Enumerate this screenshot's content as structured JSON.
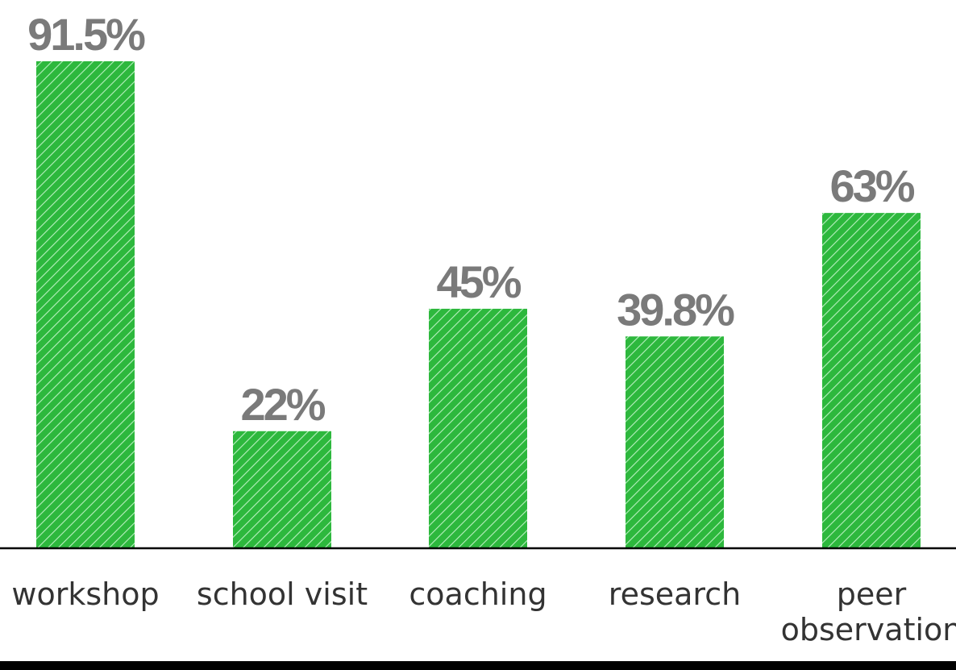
{
  "chart_data": {
    "type": "bar",
    "categories": [
      [
        "workshop"
      ],
      [
        "school visit"
      ],
      [
        "coaching"
      ],
      [
        "research"
      ],
      [
        "peer",
        "observation"
      ]
    ],
    "values": [
      91.5,
      22,
      45,
      39.8,
      63
    ],
    "value_labels": [
      "91.5%",
      "22%",
      "45%",
      "39.8%",
      "63%"
    ],
    "ylim": [
      0,
      100
    ],
    "grid": false,
    "legend": "none",
    "title": "",
    "xlabel": "",
    "ylabel": ""
  },
  "colors": {
    "bar_fill": "#2db83d",
    "bar_hatch": "#b8f0c0",
    "value_text": "#7a7a7a",
    "axis": "#000000",
    "category_text": "#333333",
    "bottom_band": "#000000"
  }
}
